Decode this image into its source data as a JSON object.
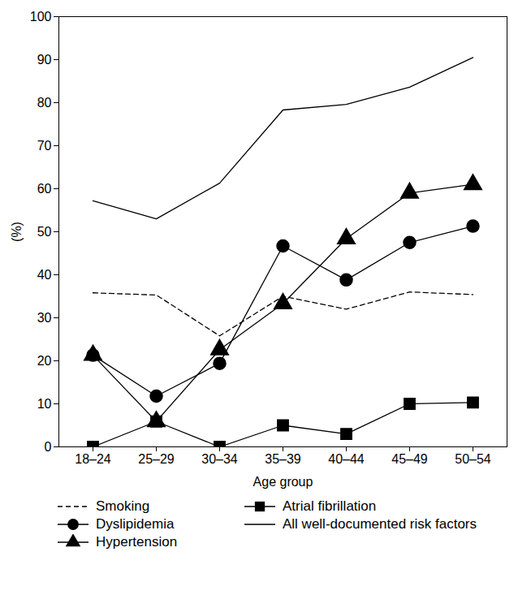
{
  "chart_data": {
    "type": "line",
    "x_label": "Age group",
    "y_label": "(%)",
    "categories": [
      "18–24",
      "25–29",
      "30–34",
      "35–39",
      "40–44",
      "45–49",
      "50–54"
    ],
    "ylim": [
      0,
      100
    ],
    "yticks": [
      0,
      10,
      20,
      30,
      40,
      50,
      60,
      70,
      80,
      90,
      100
    ],
    "grid": false,
    "legend": "bottom",
    "series": [
      {
        "name": "Smoking",
        "color": "#000000",
        "marker": "none",
        "line_style": "dashed",
        "values": [
          35.8,
          35.3,
          25.8,
          35.0,
          32.0,
          36.0,
          35.4
        ]
      },
      {
        "name": "Dyslipidemia",
        "color": "#000000",
        "marker": "circle",
        "line_style": "solid",
        "values": [
          21.3,
          11.8,
          19.4,
          46.7,
          38.8,
          47.5,
          51.3
        ]
      },
      {
        "name": "Hypertension",
        "color": "#000000",
        "marker": "triangle",
        "line_style": "solid",
        "values": [
          21.3,
          5.9,
          22.6,
          33.3,
          48.4,
          59.0,
          61.0
        ]
      },
      {
        "name": "Atrial fibrillation",
        "color": "#000000",
        "marker": "square",
        "line_style": "solid",
        "values": [
          0,
          5.9,
          0,
          5.0,
          3.0,
          10.0,
          10.3
        ]
      },
      {
        "name": "All well-documented risk factors",
        "color": "#000000",
        "marker": "none",
        "line_style": "solid",
        "values": [
          57.2,
          53.0,
          61.3,
          78.3,
          79.6,
          83.6,
          90.5
        ]
      }
    ]
  }
}
